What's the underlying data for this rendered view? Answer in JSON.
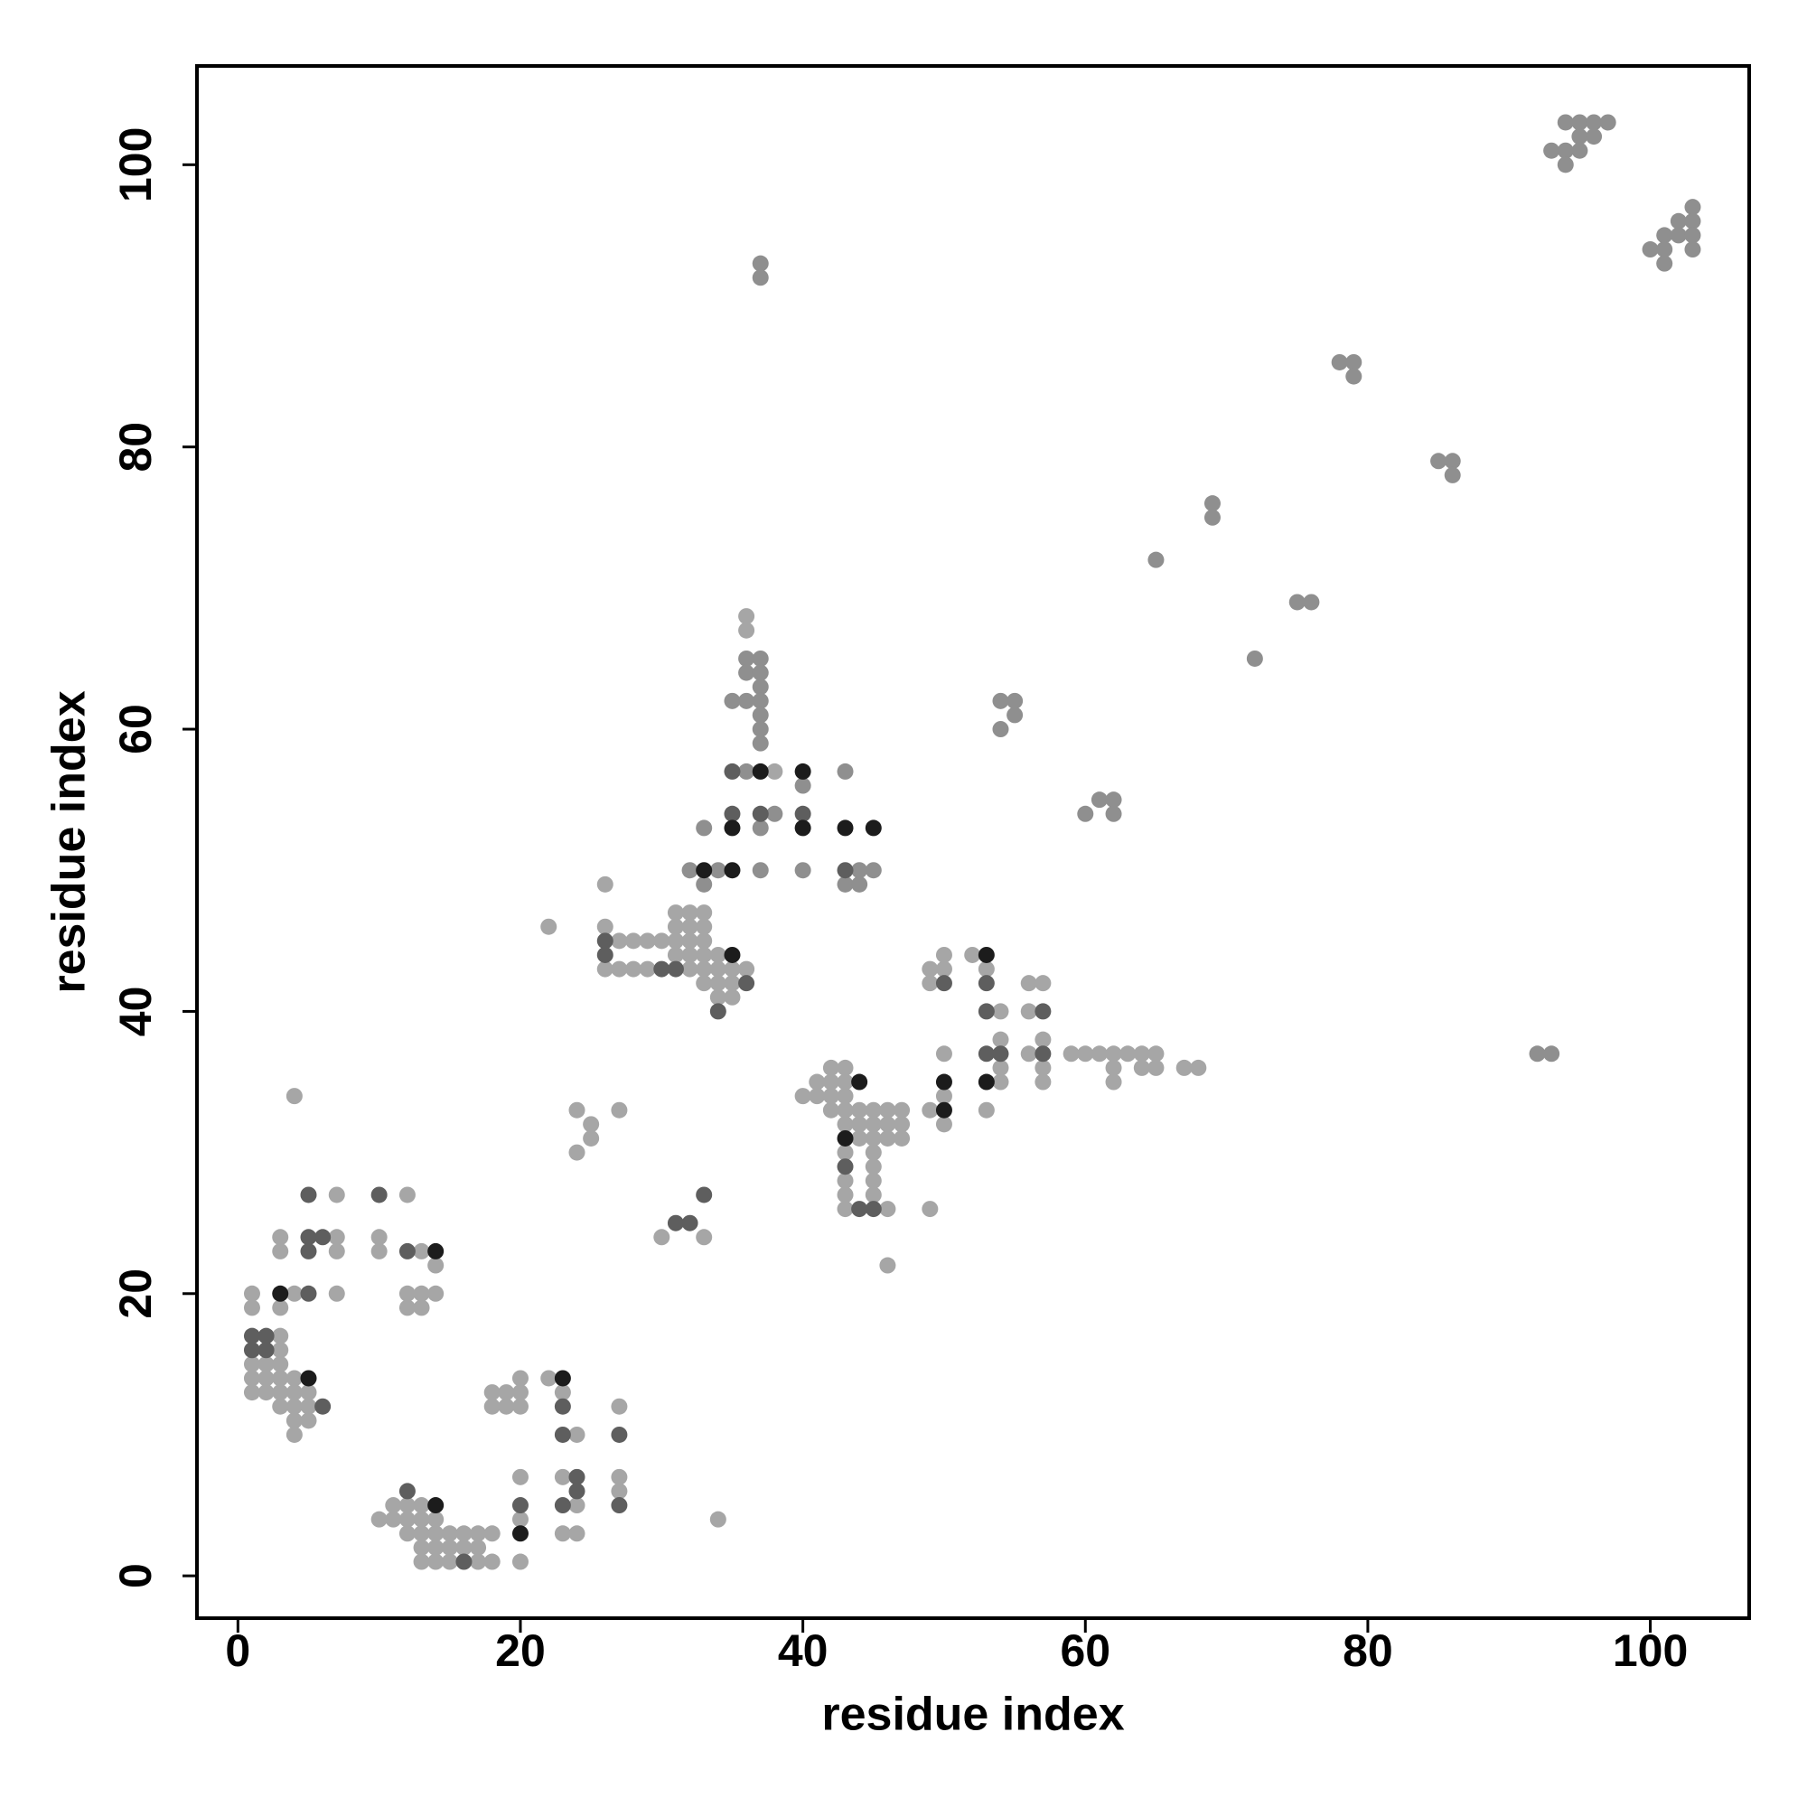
{
  "chart_data": {
    "type": "scatter",
    "x_label": "residue index",
    "y_label": "residue index",
    "xlim": [
      -2.9,
      107
    ],
    "ylim": [
      -3,
      107
    ],
    "xticks": [
      0,
      20,
      40,
      60,
      80,
      100
    ],
    "yticks": [
      0,
      20,
      40,
      60,
      80,
      100
    ],
    "grid": false,
    "series": [
      {
        "color": "#a6a6a6",
        "x": [
          1,
          1,
          1,
          1,
          1,
          2,
          2,
          2,
          3,
          3,
          3,
          3,
          3,
          3,
          4,
          4,
          4,
          4,
          4,
          5,
          5,
          5,
          3,
          3,
          3,
          4,
          7,
          7,
          7,
          7,
          4,
          10,
          10,
          12,
          12,
          12,
          13,
          13,
          13,
          14,
          14,
          10,
          11,
          11,
          12,
          12,
          12,
          13,
          13,
          13,
          13,
          13,
          14,
          14,
          14,
          14,
          15,
          15,
          15,
          16,
          16,
          17,
          17,
          17,
          18,
          18,
          18,
          18,
          19,
          19,
          20,
          20,
          20,
          20,
          20,
          20,
          22,
          23,
          23,
          23,
          24,
          24,
          24,
          27,
          27,
          27,
          24,
          24,
          25,
          25,
          27,
          22,
          26,
          30,
          33,
          34,
          46,
          49,
          26,
          26,
          27,
          27,
          28,
          28,
          29,
          29,
          30,
          31,
          31,
          31,
          31,
          32,
          32,
          32,
          32,
          32,
          33,
          33,
          33,
          33,
          33,
          33,
          34,
          34,
          34,
          34,
          35,
          35,
          35,
          36,
          36,
          36,
          38,
          40,
          41,
          41,
          42,
          42,
          42,
          42,
          43,
          43,
          43,
          43,
          43,
          43,
          43,
          43,
          43,
          44,
          44,
          44,
          45,
          45,
          45,
          45,
          45,
          45,
          45,
          46,
          46,
          46,
          46,
          47,
          47,
          47,
          49,
          49,
          49,
          50,
          50,
          50,
          50,
          50,
          52,
          53,
          53,
          54,
          54,
          54,
          54,
          56,
          56,
          56,
          57,
          57,
          57,
          57,
          59,
          60,
          61,
          62,
          62,
          62,
          63,
          64,
          64,
          65,
          65,
          67,
          68
        ],
        "y": [
          20,
          19,
          15,
          14,
          13,
          15,
          14,
          13,
          17,
          16,
          15,
          14,
          13,
          12,
          14,
          13,
          12,
          11,
          10,
          13,
          12,
          11,
          24,
          23,
          19,
          20,
          27,
          23,
          24,
          20,
          34,
          24,
          23,
          27,
          20,
          19,
          23,
          20,
          19,
          22,
          20,
          4,
          5,
          4,
          5,
          4,
          3,
          5,
          4,
          3,
          2,
          1,
          4,
          3,
          2,
          1,
          3,
          2,
          1,
          3,
          2,
          3,
          2,
          1,
          3,
          1,
          13,
          12,
          13,
          12,
          14,
          13,
          12,
          7,
          4,
          1,
          14,
          13,
          7,
          3,
          10,
          5,
          3,
          12,
          7,
          6,
          33,
          30,
          32,
          31,
          33,
          46,
          49,
          24,
          24,
          4,
          22,
          26,
          46,
          43,
          45,
          43,
          45,
          43,
          45,
          43,
          45,
          47,
          46,
          45,
          44,
          47,
          46,
          45,
          44,
          43,
          47,
          46,
          45,
          44,
          43,
          42,
          44,
          43,
          42,
          41,
          43,
          42,
          41,
          43,
          68,
          67,
          57,
          34,
          35,
          34,
          36,
          35,
          34,
          33,
          36,
          35,
          34,
          33,
          32,
          30,
          28,
          27,
          26,
          33,
          32,
          31,
          33,
          32,
          31,
          30,
          29,
          28,
          27,
          33,
          32,
          31,
          26,
          33,
          32,
          31,
          43,
          42,
          33,
          44,
          43,
          37,
          34,
          32,
          44,
          43,
          33,
          40,
          38,
          36,
          35,
          42,
          40,
          37,
          42,
          38,
          36,
          35,
          37,
          37,
          37,
          37,
          36,
          35,
          37,
          37,
          36,
          37,
          36,
          36,
          36
        ]
      },
      {
        "color": "#8f8f8f",
        "x": [
          37,
          37,
          65,
          69,
          69,
          72,
          75,
          76,
          78,
          79,
          79,
          85,
          86,
          86,
          92,
          93,
          93,
          94,
          94,
          94,
          95,
          95,
          95,
          96,
          96,
          97,
          100,
          101,
          101,
          101,
          102,
          102,
          103,
          103,
          103,
          103,
          54,
          54,
          55,
          55,
          60,
          61,
          62,
          62,
          36,
          36,
          37,
          37,
          37,
          37,
          37,
          37,
          37,
          36,
          37,
          38,
          43,
          40,
          43,
          44,
          44,
          45,
          40,
          37,
          33,
          34,
          32,
          33,
          35,
          36
        ],
        "y": [
          93,
          92,
          72,
          76,
          75,
          65,
          69,
          69,
          86,
          86,
          85,
          79,
          79,
          78,
          37,
          37,
          101,
          103,
          101,
          100,
          103,
          102,
          101,
          103,
          102,
          103,
          94,
          95,
          94,
          93,
          96,
          95,
          97,
          96,
          95,
          94,
          62,
          60,
          62,
          61,
          54,
          55,
          55,
          54,
          65,
          64,
          65,
          64,
          63,
          62,
          61,
          60,
          59,
          57,
          53,
          54,
          57,
          56,
          49,
          49,
          50,
          50,
          50,
          50,
          49,
          50,
          50,
          53,
          62,
          62
        ]
      },
      {
        "color": "#5e5e5e",
        "x": [
          1,
          1,
          2,
          2,
          6,
          5,
          5,
          5,
          5,
          6,
          10,
          12,
          12,
          16,
          20,
          23,
          23,
          23,
          24,
          24,
          27,
          27,
          37,
          43,
          40,
          35,
          35,
          44,
          45,
          53,
          57,
          57,
          50,
          53,
          53,
          54,
          33,
          31,
          32,
          30,
          31,
          26,
          26,
          43,
          34,
          36
        ],
        "y": [
          17,
          16,
          17,
          16,
          12,
          20,
          24,
          23,
          27,
          24,
          27,
          23,
          6,
          1,
          5,
          12,
          10,
          5,
          7,
          6,
          10,
          5,
          54,
          50,
          54,
          54,
          57,
          26,
          26,
          42,
          37,
          40,
          42,
          40,
          37,
          37,
          27,
          25,
          25,
          43,
          43,
          45,
          44,
          29,
          40,
          42
        ]
      },
      {
        "color": "#1c1c1c",
        "x": [
          5,
          3,
          14,
          14,
          20,
          23,
          35,
          33,
          35,
          35,
          37,
          40,
          40,
          43,
          45,
          43,
          44,
          50,
          50,
          53,
          53
        ],
        "y": [
          14,
          20,
          23,
          5,
          3,
          14,
          44,
          50,
          53,
          50,
          57,
          57,
          53,
          53,
          53,
          31,
          35,
          35,
          33,
          44,
          35
        ]
      }
    ]
  }
}
